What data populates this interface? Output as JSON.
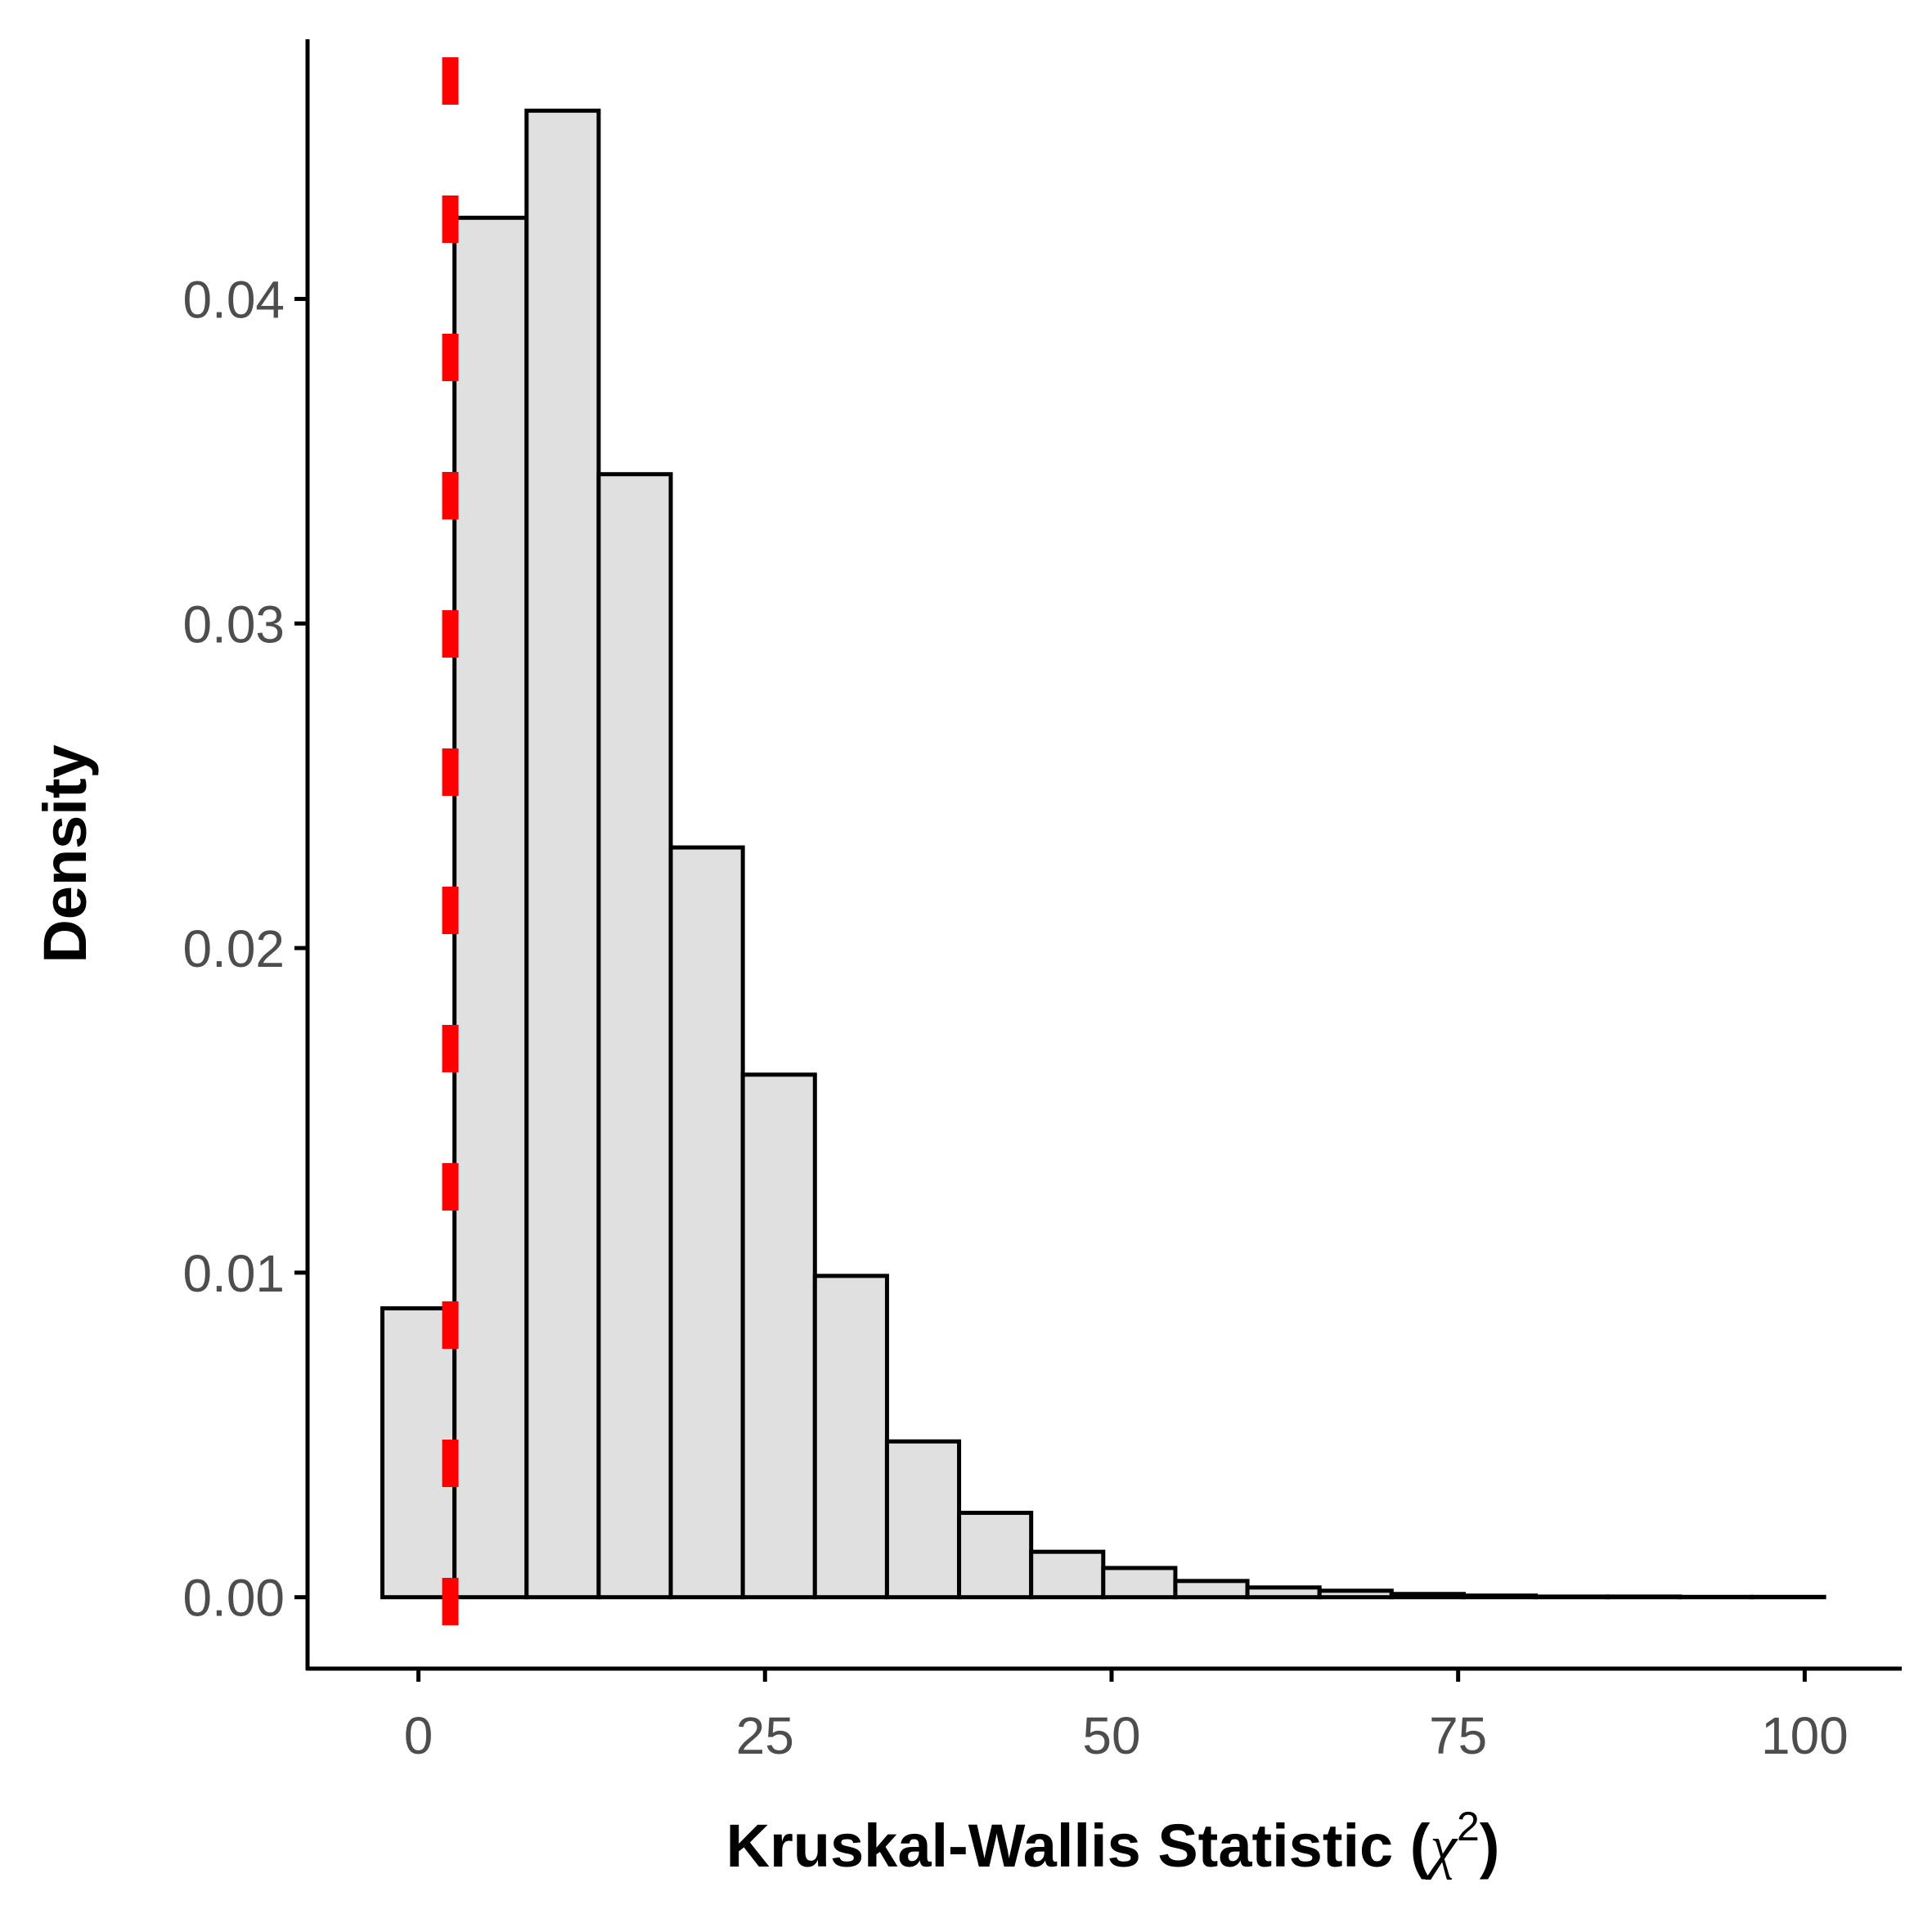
{
  "chart_data": {
    "type": "bar",
    "title": "",
    "xlabel_text": "Kruskal-Wallis Statistic (",
    "xlabel_symbol": "χ",
    "xlabel_superscript": "2",
    "xlabel_close": ")",
    "ylabel": "Density",
    "xlim": [
      -8,
      107
    ],
    "ylim": [
      -0.0022,
      0.048
    ],
    "x_ticks": [
      0,
      25,
      50,
      75,
      100
    ],
    "x_tick_labels": [
      "0",
      "25",
      "50",
      "75",
      "100"
    ],
    "y_ticks": [
      0,
      0.01,
      0.02,
      0.03,
      0.04
    ],
    "y_tick_labels": [
      "0.00",
      "0.01",
      "0.02",
      "0.03",
      "0.04"
    ],
    "bins": [
      {
        "x0": -2.6,
        "x1": 2.6,
        "density": 0.0089
      },
      {
        "x0": 2.6,
        "x1": 7.8,
        "density": 0.0425
      },
      {
        "x0": 7.8,
        "x1": 13.0,
        "density": 0.0458
      },
      {
        "x0": 13.0,
        "x1": 18.2,
        "density": 0.0346
      },
      {
        "x0": 18.2,
        "x1": 23.4,
        "density": 0.0231
      },
      {
        "x0": 23.4,
        "x1": 28.6,
        "density": 0.0161
      },
      {
        "x0": 28.6,
        "x1": 33.8,
        "density": 0.0099
      },
      {
        "x0": 33.8,
        "x1": 39.0,
        "density": 0.0048
      },
      {
        "x0": 39.0,
        "x1": 44.2,
        "density": 0.0026
      },
      {
        "x0": 44.2,
        "x1": 49.4,
        "density": 0.0014
      },
      {
        "x0": 49.4,
        "x1": 54.6,
        "density": 0.0009
      },
      {
        "x0": 54.6,
        "x1": 59.8,
        "density": 0.0005
      },
      {
        "x0": 59.8,
        "x1": 65.0,
        "density": 0.0003
      },
      {
        "x0": 65.0,
        "x1": 70.2,
        "density": 0.0002
      },
      {
        "x0": 70.2,
        "x1": 75.4,
        "density": 0.0001
      },
      {
        "x0": 75.4,
        "x1": 80.6,
        "density": 5e-05
      },
      {
        "x0": 80.6,
        "x1": 85.8,
        "density": 2e-05
      },
      {
        "x0": 85.8,
        "x1": 91.0,
        "density": 2e-05
      },
      {
        "x0": 91.0,
        "x1": 96.2,
        "density": 1e-05
      },
      {
        "x0": 96.2,
        "x1": 101.4,
        "density": 1e-05
      }
    ],
    "bar_fill": "#e0e0e0",
    "bar_stroke": "#000000",
    "reference_line": {
      "x": 2.3,
      "color": "#ff0000",
      "style": "dashed",
      "orientation": "vertical"
    },
    "grid": false,
    "legend": "none"
  }
}
